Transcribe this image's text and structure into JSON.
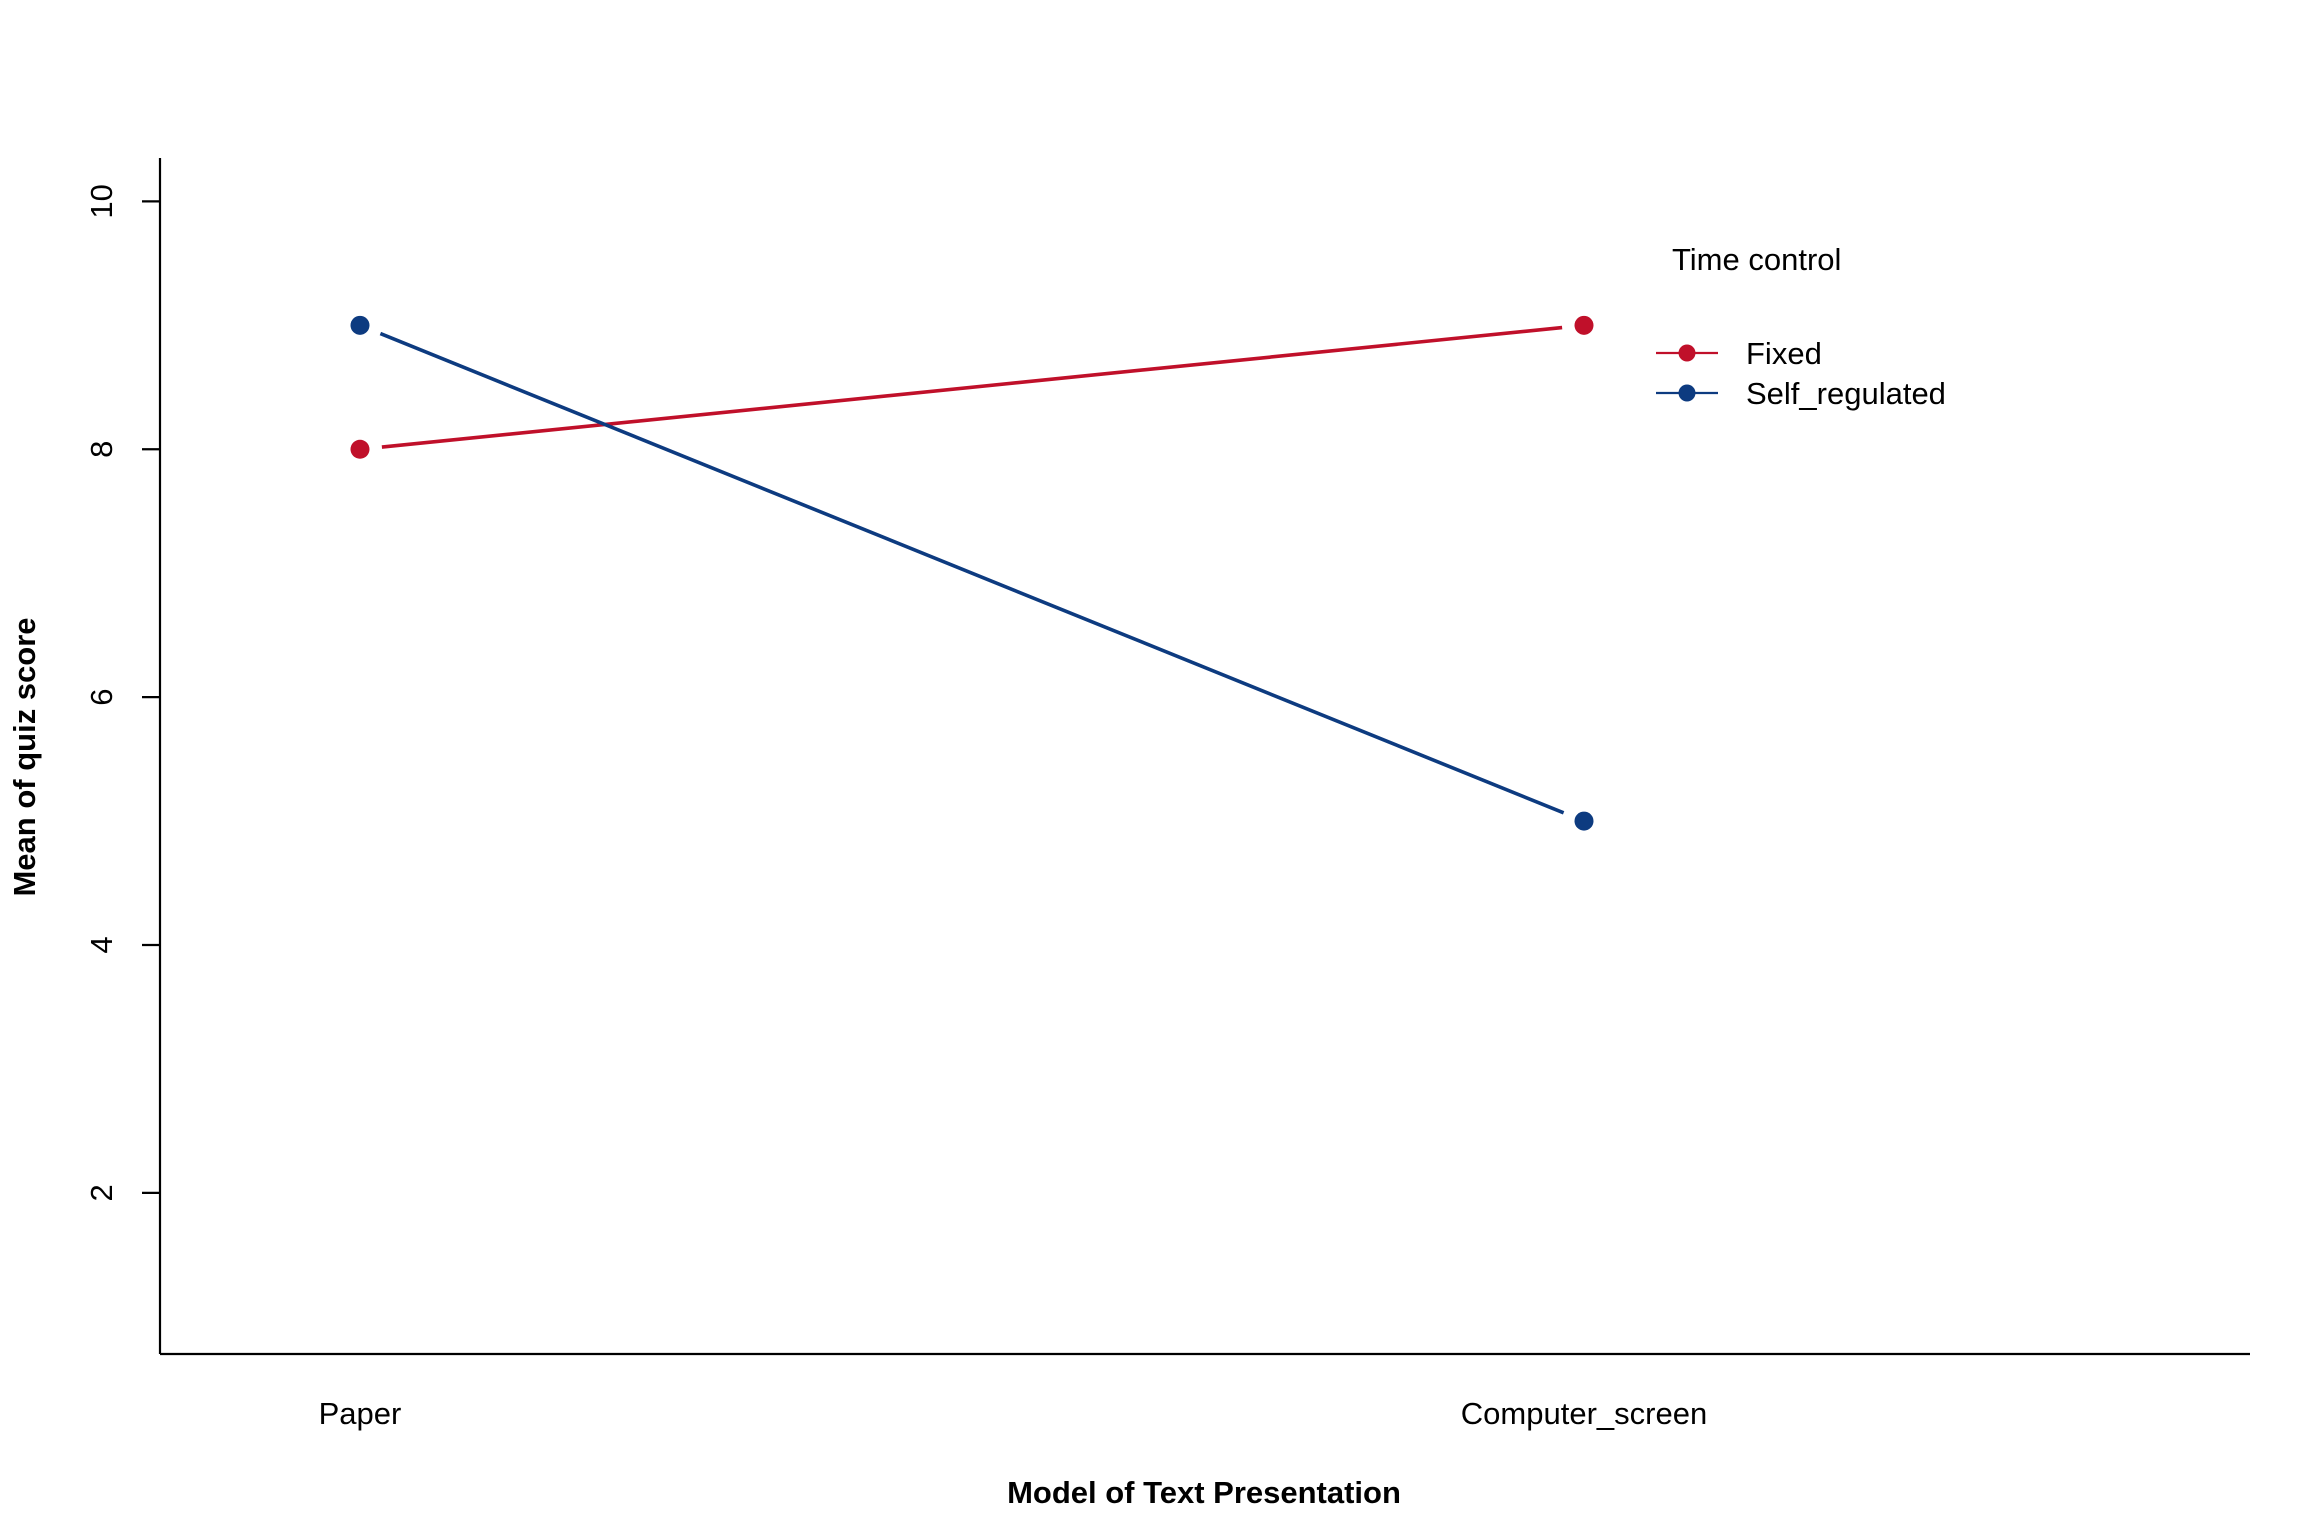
{
  "chart_data": {
    "type": "line",
    "title": "",
    "xlabel": "Model of Text Presentation",
    "ylabel": "Mean of quiz score",
    "categories": [
      "Paper",
      "Computer_screen"
    ],
    "ylim": [
      0.7,
      10.35
    ],
    "yticks": [
      2,
      4,
      6,
      8,
      10
    ],
    "grid": false,
    "legend": {
      "title": "Time control",
      "placement": "top-right"
    },
    "series": [
      {
        "name": "Fixed",
        "values": [
          8,
          9
        ],
        "color": "#C0102A"
      },
      {
        "name": "Self_regulated",
        "values": [
          9,
          5
        ],
        "color": "#0D3B80"
      }
    ]
  }
}
